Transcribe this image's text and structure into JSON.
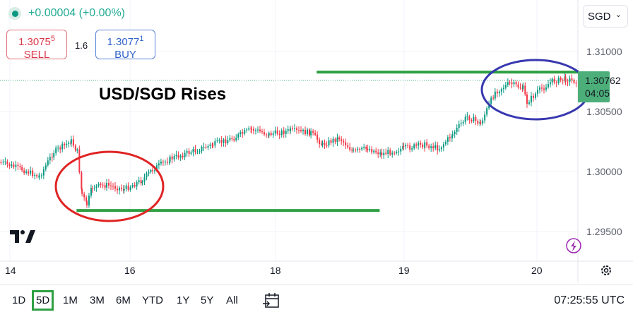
{
  "header": {
    "change": "+0.00004 (+0.00%)",
    "sell_price": "1.3075",
    "sell_price_sup": "5",
    "sell_label": "SELL",
    "spread": "1.6",
    "buy_price": "1.3077",
    "buy_price_sup": "1",
    "buy_label": "BUY"
  },
  "currency_select": {
    "value": "SGD",
    "icon": "chevron-down-icon"
  },
  "annotation_text": "USD/SGD Rises",
  "price_axis": {
    "labels": [
      "1.31000",
      "1.30500",
      "1.30000",
      "1.29500"
    ],
    "last_price": "1.30762",
    "countdown": "04:05",
    "last_price_color": "#4caf7a"
  },
  "time_axis": {
    "labels": [
      "14",
      "16",
      "18",
      "19",
      "20"
    ]
  },
  "ranges": [
    "1D",
    "5D",
    "1M",
    "3M",
    "6M",
    "YTD",
    "1Y",
    "5Y",
    "All"
  ],
  "selected_range": "5D",
  "clock": "07:25:55 UTC",
  "colors": {
    "up": "#089981",
    "down": "#f23645",
    "support_line": "#2ea043",
    "red_ellipse": "#e02424",
    "blue_ellipse": "#3838b0",
    "accent": "#2ea043"
  },
  "chart_data": {
    "type": "candlestick",
    "ylim": [
      1.2935,
      1.3125
    ],
    "x_ticks": [
      14,
      16,
      18,
      19,
      20
    ],
    "y_ticks": [
      1.31,
      1.305,
      1.3,
      1.295
    ],
    "series": [
      {
        "x": [
          13.84,
          14.19,
          14.48,
          14.72,
          15.01,
          15.11,
          15.19,
          15.27,
          15.36,
          15.6,
          15.89,
          16.16,
          16.3,
          16.54,
          16.83,
          17.13,
          17.42,
          17.66,
          17.9,
          18.11,
          18.27,
          18.36,
          18.49,
          18.6,
          18.71,
          18.82,
          18.99,
          19.15,
          19.26,
          19.36,
          19.47,
          19.57,
          19.68,
          19.79,
          19.89,
          19.92,
          20.0,
          20.11,
          20.21,
          20.29
        ],
        "y": [
          1.30076,
          1.30018,
          1.29959,
          1.30165,
          1.30253,
          1.30165,
          1.29812,
          1.29724,
          1.29871,
          1.29888,
          1.29853,
          1.29929,
          1.30018,
          1.30106,
          1.30165,
          1.30224,
          1.30282,
          1.30353,
          1.30312,
          1.30341,
          1.30324,
          1.30224,
          1.30282,
          1.30165,
          1.30194,
          1.30147,
          1.30194,
          1.30224,
          1.30194,
          1.30312,
          1.30459,
          1.304,
          1.30665,
          1.30735,
          1.30694,
          1.30576,
          1.30665,
          1.30753,
          1.30771,
          1.30753
        ]
      }
    ],
    "annotations": {
      "resistance_line": {
        "price": 1.30829,
        "from": 18.32,
        "to": 20.31
      },
      "support_line": {
        "price": 1.29676,
        "from": 15.11,
        "to": 18.81
      }
    }
  }
}
